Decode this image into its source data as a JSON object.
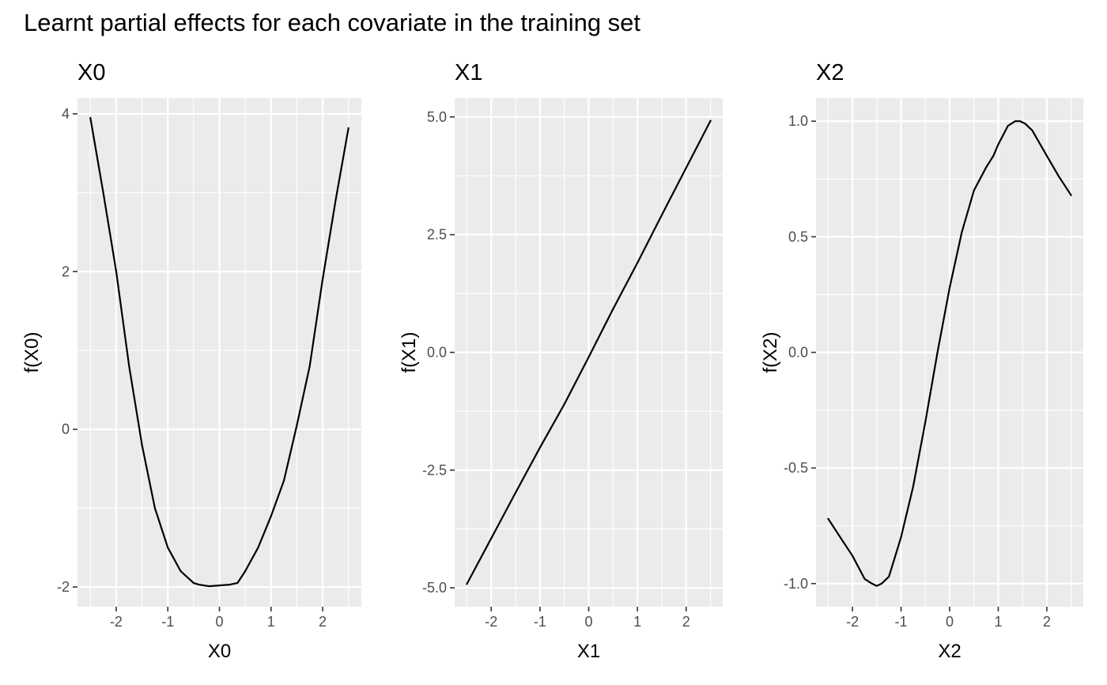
{
  "figure": {
    "title": "Learnt partial effects for each covariate in the training set"
  },
  "colors": {
    "panel_background": "#ebebeb",
    "grid": "#ffffff",
    "line": "#000000",
    "tick_label": "#4d4d4d"
  },
  "chart_data": [
    {
      "type": "line",
      "title": "X0",
      "xlabel": "X0",
      "ylabel": "f(X0)",
      "xlim": [
        -2.75,
        2.75
      ],
      "ylim": [
        -2.25,
        4.2
      ],
      "xticks": [
        -2,
        -1,
        0,
        1,
        2
      ],
      "xtick_labels": [
        "-2",
        "-1",
        "0",
        "1",
        "2"
      ],
      "yticks": [
        -2,
        0,
        2,
        4
      ],
      "ytick_labels": [
        "-2",
        "0",
        "2",
        "4"
      ],
      "grid": true,
      "legend": "none",
      "x": [
        -2.5,
        -2.25,
        -2.0,
        -1.75,
        -1.5,
        -1.25,
        -1.0,
        -0.75,
        -0.5,
        -0.4,
        -0.2,
        0.0,
        0.2,
        0.35,
        0.5,
        0.75,
        1.0,
        1.25,
        1.5,
        1.75,
        2.0,
        2.25,
        2.5
      ],
      "y": [
        3.95,
        3.0,
        2.0,
        0.8,
        -0.2,
        -1.0,
        -1.5,
        -1.8,
        -1.95,
        -1.97,
        -1.99,
        -1.98,
        -1.97,
        -1.95,
        -1.8,
        -1.5,
        -1.1,
        -0.65,
        0.05,
        0.8,
        1.9,
        2.9,
        3.82
      ]
    },
    {
      "type": "line",
      "title": "X1",
      "xlabel": "X1",
      "ylabel": "f(X1)",
      "xlim": [
        -2.75,
        2.75
      ],
      "ylim": [
        -5.4,
        5.4
      ],
      "xticks": [
        -2,
        -1,
        0,
        1,
        2
      ],
      "xtick_labels": [
        "-2",
        "-1",
        "0",
        "1",
        "2"
      ],
      "yticks": [
        -5.0,
        -2.5,
        0.0,
        2.5,
        5.0
      ],
      "ytick_labels": [
        "-5.0",
        "-2.5",
        "0.0",
        "2.5",
        "5.0"
      ],
      "grid": true,
      "legend": "none",
      "x": [
        -2.5,
        -2.0,
        -1.5,
        -1.0,
        -0.5,
        0.0,
        0.5,
        1.0,
        1.5,
        2.0,
        2.5
      ],
      "y": [
        -4.92,
        -3.95,
        -2.98,
        -2.02,
        -1.1,
        -0.1,
        0.92,
        1.9,
        2.92,
        3.92,
        4.92
      ]
    },
    {
      "type": "line",
      "title": "X2",
      "xlabel": "X2",
      "ylabel": "f(X2)",
      "xlim": [
        -2.75,
        2.75
      ],
      "ylim": [
        -1.1,
        1.1
      ],
      "xticks": [
        -2,
        -1,
        0,
        1,
        2
      ],
      "xtick_labels": [
        "-2",
        "-1",
        "0",
        "1",
        "2"
      ],
      "yticks": [
        -1.0,
        -0.5,
        0.0,
        0.5,
        1.0
      ],
      "ytick_labels": [
        "-1.0",
        "-0.5",
        "0.0",
        "0.5",
        "1.0"
      ],
      "grid": true,
      "legend": "none",
      "x": [
        -2.5,
        -2.25,
        -2.0,
        -1.75,
        -1.6,
        -1.5,
        -1.4,
        -1.25,
        -1.0,
        -0.75,
        -0.5,
        -0.25,
        0.0,
        0.25,
        0.5,
        0.75,
        0.9,
        1.0,
        1.2,
        1.35,
        1.45,
        1.55,
        1.7,
        2.0,
        2.25,
        2.5
      ],
      "y": [
        -0.72,
        -0.8,
        -0.88,
        -0.98,
        -1.0,
        -1.01,
        -1.0,
        -0.97,
        -0.8,
        -0.58,
        -0.3,
        0.0,
        0.28,
        0.52,
        0.7,
        0.8,
        0.85,
        0.9,
        0.98,
        1.0,
        1.0,
        0.99,
        0.96,
        0.85,
        0.76,
        0.68
      ]
    }
  ]
}
